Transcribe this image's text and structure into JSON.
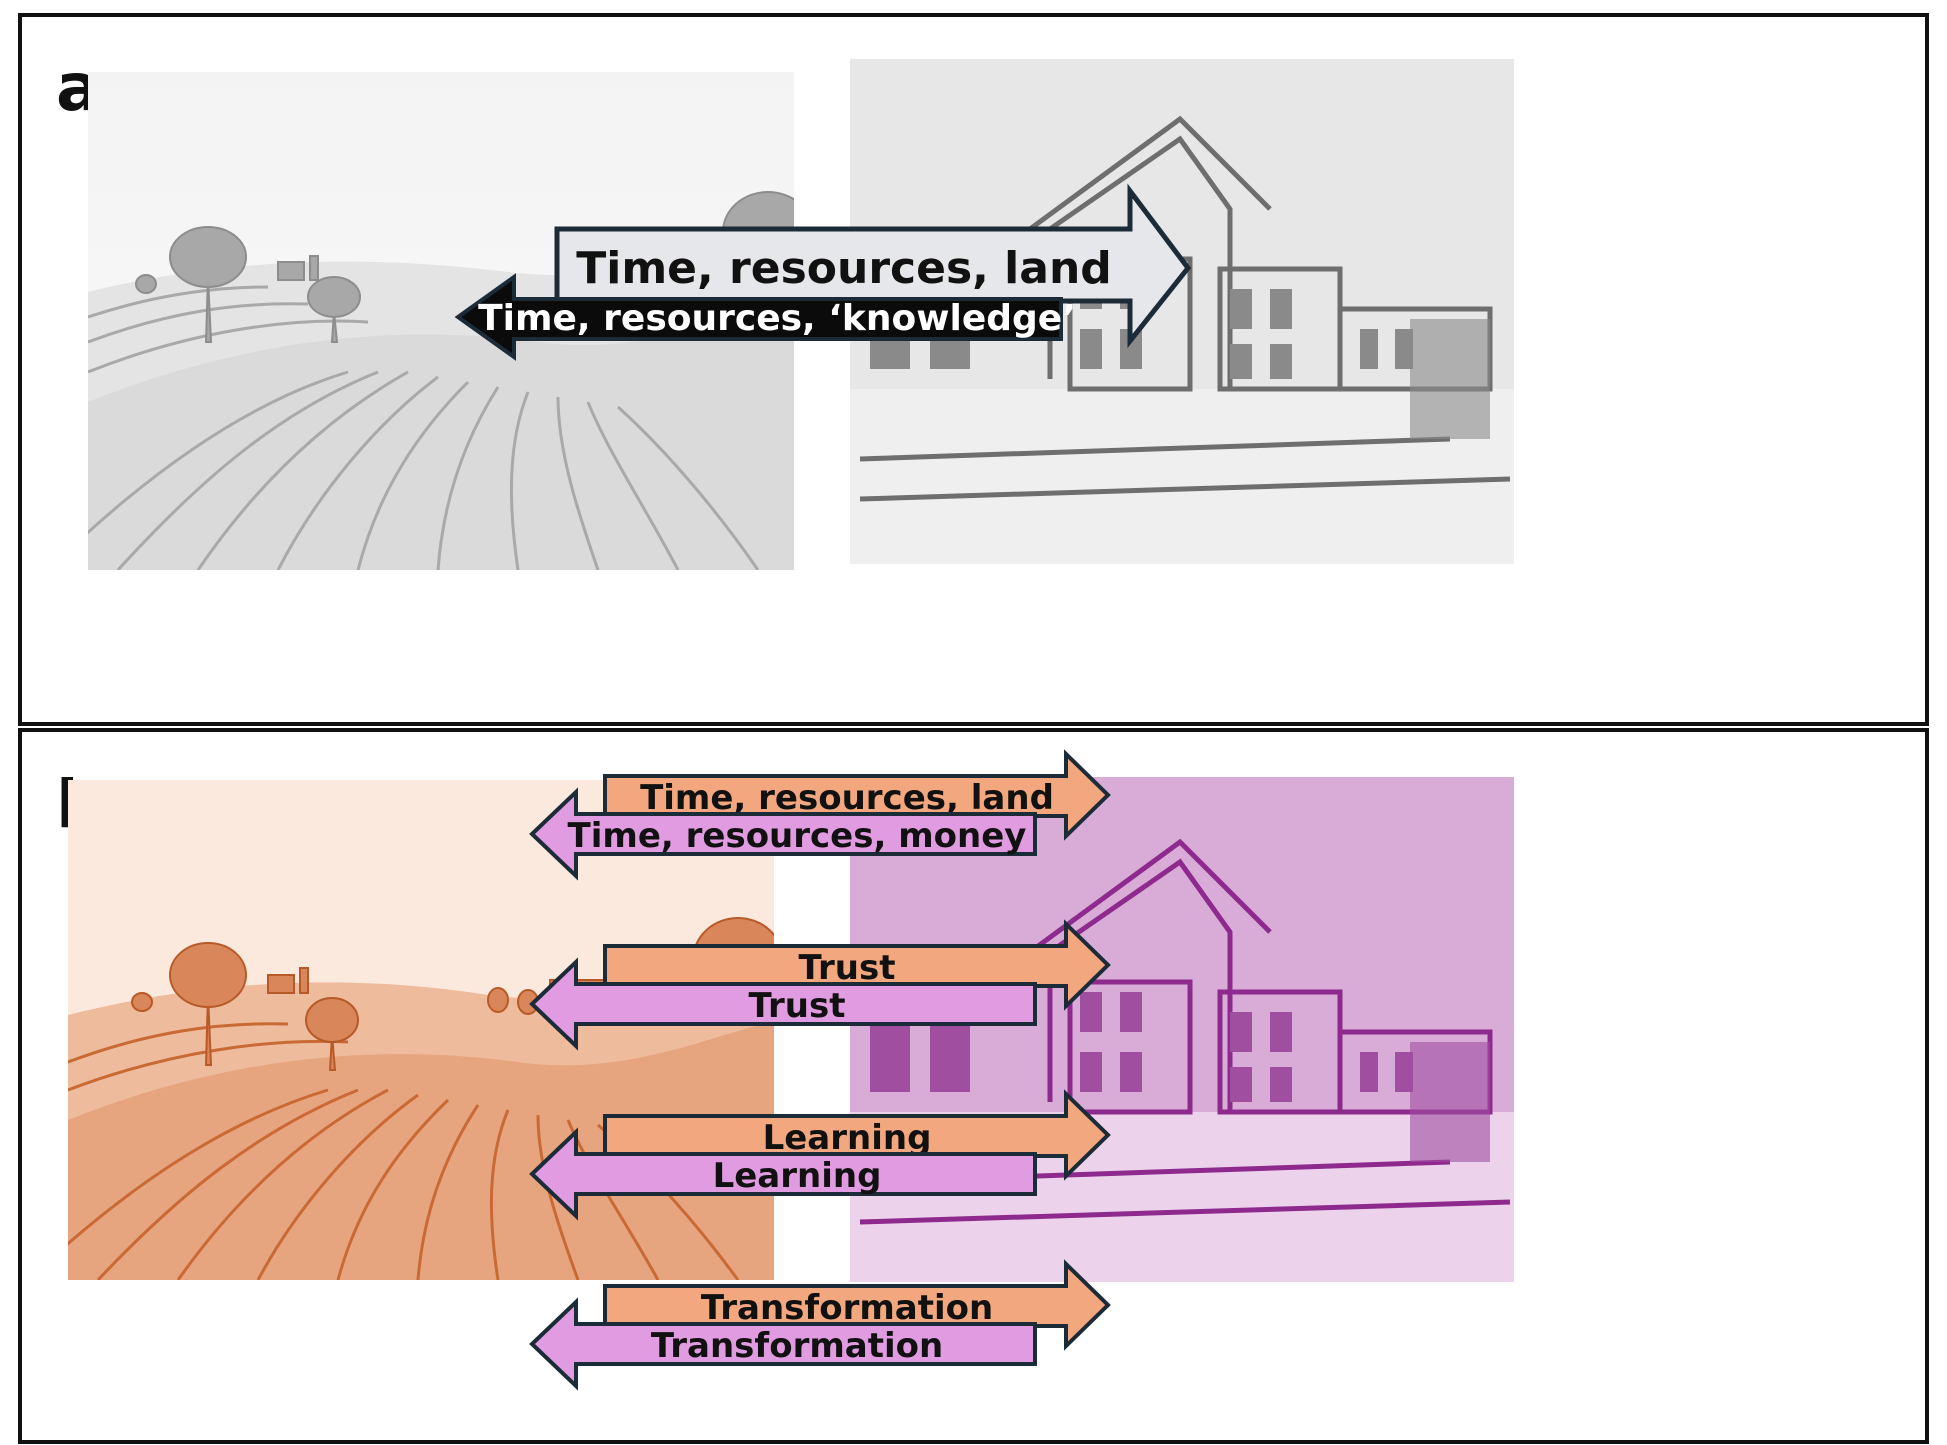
{
  "panels": [
    {
      "letter": "a",
      "arrows": [
        {
          "label": "Time, resources, land",
          "direction": "right",
          "fill": "#e6e7ea",
          "text_color": "#111111"
        },
        {
          "label": "Time, resources, ‘knowledge’",
          "direction": "left",
          "fill": "#0b0b0b",
          "text_color": "#ffffff"
        }
      ]
    },
    {
      "letter": "b",
      "arrows": [
        {
          "label": "Time, resources, land",
          "direction": "right",
          "fill": "#f2a77e",
          "text_color": "#111111"
        },
        {
          "label": "Time, resources, money",
          "direction": "left",
          "fill": "#e19be0",
          "text_color": "#111111"
        },
        {
          "label": "Trust",
          "direction": "right",
          "fill": "#f2a77e",
          "text_color": "#111111"
        },
        {
          "label": "Trust",
          "direction": "left",
          "fill": "#e19be0",
          "text_color": "#111111"
        },
        {
          "label": "Learning",
          "direction": "right",
          "fill": "#f2a77e",
          "text_color": "#111111"
        },
        {
          "label": "Learning",
          "direction": "left",
          "fill": "#e19be0",
          "text_color": "#111111"
        },
        {
          "label": "Transformation",
          "direction": "right",
          "fill": "#f2a77e",
          "text_color": "#111111"
        },
        {
          "label": "Transformation",
          "direction": "left",
          "fill": "#e19be0",
          "text_color": "#111111"
        }
      ]
    }
  ],
  "colors": {
    "farm_gray": "#9a9a9a",
    "farm_orange": "#c96a35",
    "building_gray": "#6e6e6e",
    "building_purple": "#8e2a8e",
    "arrow_outline": "#1c2b38"
  }
}
